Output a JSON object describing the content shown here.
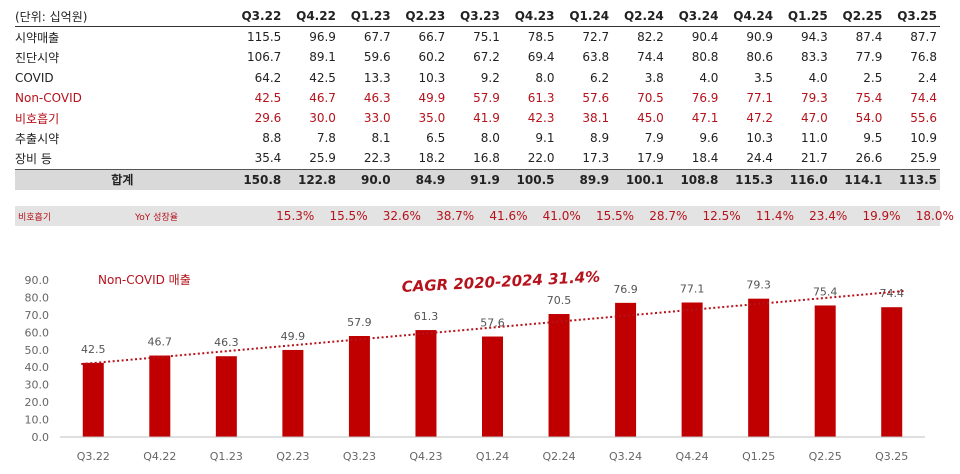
{
  "table": {
    "unit_label": "(단위: 십억원)",
    "columns": [
      "Q3.22",
      "Q4.22",
      "Q1.23",
      "Q2.23",
      "Q3.23",
      "Q4.23",
      "Q1.24",
      "Q2.24",
      "Q3.24",
      "Q4.24",
      "Q1.25",
      "Q2.25",
      "Q3.25"
    ],
    "rows": [
      {
        "label": "시약매출",
        "values": [
          "115.5",
          "96.9",
          "67.7",
          "66.7",
          "75.1",
          "78.5",
          "72.7",
          "82.2",
          "90.4",
          "90.9",
          "94.3",
          "87.4",
          "87.7"
        ]
      },
      {
        "label": "진단시약",
        "values": [
          "106.7",
          "89.1",
          "59.6",
          "60.2",
          "67.2",
          "69.4",
          "63.8",
          "74.4",
          "80.8",
          "80.6",
          "83.3",
          "77.9",
          "76.8"
        ]
      },
      {
        "label": "COVID",
        "values": [
          "64.2",
          "42.5",
          "13.3",
          "10.3",
          "9.2",
          "8.0",
          "6.2",
          "3.8",
          "4.0",
          "3.5",
          "4.0",
          "2.5",
          "2.4"
        ]
      },
      {
        "label": "Non-COVID",
        "values": [
          "42.5",
          "46.7",
          "46.3",
          "49.9",
          "57.9",
          "61.3",
          "57.6",
          "70.5",
          "76.9",
          "77.1",
          "79.3",
          "75.4",
          "74.4"
        ]
      },
      {
        "label": "비호흡기",
        "values": [
          "29.6",
          "30.0",
          "33.0",
          "35.0",
          "41.9",
          "42.3",
          "38.1",
          "45.0",
          "47.1",
          "47.2",
          "47.0",
          "54.0",
          "55.6"
        ]
      },
      {
        "label": "추출시약",
        "values": [
          "8.8",
          "7.8",
          "8.1",
          "6.5",
          "8.0",
          "9.1",
          "8.9",
          "7.9",
          "9.6",
          "10.3",
          "11.0",
          "9.5",
          "10.9"
        ]
      },
      {
        "label": "장비 등",
        "values": [
          "35.4",
          "25.9",
          "22.3",
          "18.2",
          "16.8",
          "22.0",
          "17.3",
          "17.9",
          "18.4",
          "24.4",
          "21.7",
          "26.6",
          "25.9"
        ]
      },
      {
        "label": "합계",
        "values": [
          "150.8",
          "122.8",
          "90.0",
          "84.9",
          "91.9",
          "100.5",
          "89.9",
          "100.1",
          "108.8",
          "115.3",
          "116.0",
          "114.1",
          "113.5"
        ]
      }
    ],
    "yoy": {
      "label1": "비호흡기",
      "label2": "YoY 성장율",
      "values": [
        "15.3%",
        "15.5%",
        "32.6%",
        "38.7%",
        "41.6%",
        "41.0%",
        "15.5%",
        "28.7%",
        "12.5%",
        "11.4%",
        "23.4%",
        "19.9%",
        "18.0%"
      ]
    }
  },
  "colors": {
    "accent": "#b5121b",
    "bar": "#c00000",
    "band": "#d9d9d9"
  },
  "chart_data": {
    "type": "bar",
    "title": "Non-COVID 매출",
    "annotation": "CAGR 2020-2024 31.4%",
    "categories": [
      "Q3.22",
      "Q4.22",
      "Q1.23",
      "Q2.23",
      "Q3.23",
      "Q4.23",
      "Q1.24",
      "Q2.24",
      "Q3.24",
      "Q4.24",
      "Q1.25",
      "Q2.25",
      "Q3.25"
    ],
    "values": [
      42.5,
      46.7,
      46.3,
      49.9,
      57.9,
      61.3,
      57.6,
      70.5,
      76.9,
      77.1,
      79.3,
      75.4,
      74.4
    ],
    "ylim": [
      0,
      90
    ],
    "yticks": [
      "0.0",
      "10.0",
      "20.0",
      "30.0",
      "40.0",
      "50.0",
      "60.0",
      "70.0",
      "80.0",
      "90.0"
    ],
    "trendline": "dotted linear trend",
    "grid": false
  }
}
